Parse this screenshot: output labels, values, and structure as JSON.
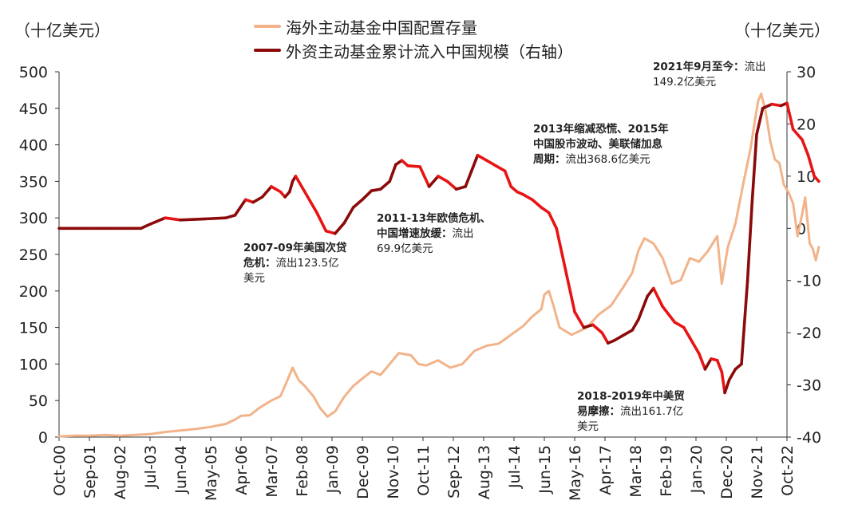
{
  "chart_data": {
    "type": "line",
    "left_unit": "（十亿美元）",
    "right_unit": "（十亿美元）",
    "legend": [
      {
        "name": "海外主动基金中国配置存量",
        "color": "#F2B38A"
      },
      {
        "name": "外资主动基金累计流入中国规模（右轴）",
        "color": "#8B0A0A"
      }
    ],
    "x_labels": [
      "Oct-00",
      "Sep-01",
      "Aug-02",
      "Jul-03",
      "Jun-04",
      "May-05",
      "Apr-06",
      "Mar-07",
      "Feb-08",
      "Jan-09",
      "Dec-09",
      "Nov-10",
      "Oct-11",
      "Sep-12",
      "Aug-13",
      "Jul-14",
      "Jun-15",
      "May-16",
      "Apr-17",
      "Mar-18",
      "Feb-19",
      "Jan-20",
      "Dec-20",
      "Nov-21",
      "Oct-22"
    ],
    "y_left": {
      "min": 0,
      "max": 500,
      "ticks": [
        0,
        50,
        100,
        150,
        200,
        250,
        300,
        350,
        400,
        450,
        500
      ]
    },
    "y_right": {
      "min": -40,
      "max": 30,
      "ticks": [
        -40,
        -30,
        -20,
        -10,
        0,
        10,
        20,
        30
      ]
    },
    "series": [
      {
        "name": "海外主动基金中国配置存量",
        "axis": "left",
        "color": "#F2B38A",
        "points": [
          [
            0,
            1
          ],
          [
            0.5,
            2
          ],
          [
            1,
            2
          ],
          [
            1.5,
            3
          ],
          [
            2,
            2
          ],
          [
            2.5,
            3
          ],
          [
            3,
            4
          ],
          [
            3.5,
            7
          ],
          [
            4,
            9
          ],
          [
            4.5,
            11
          ],
          [
            5,
            14
          ],
          [
            5.5,
            18
          ],
          [
            5.8,
            24
          ],
          [
            6,
            29
          ],
          [
            6.3,
            30
          ],
          [
            6.6,
            40
          ],
          [
            7,
            50
          ],
          [
            7.3,
            56
          ],
          [
            7.5,
            75
          ],
          [
            7.7,
            95
          ],
          [
            7.9,
            78
          ],
          [
            8.1,
            70
          ],
          [
            8.4,
            55
          ],
          [
            8.6,
            40
          ],
          [
            8.85,
            28
          ],
          [
            9.1,
            35
          ],
          [
            9.4,
            55
          ],
          [
            9.7,
            70
          ],
          [
            10,
            80
          ],
          [
            10.3,
            90
          ],
          [
            10.6,
            85
          ],
          [
            10.9,
            100
          ],
          [
            11.2,
            115
          ],
          [
            11.6,
            112
          ],
          [
            11.85,
            100
          ],
          [
            12.1,
            98
          ],
          [
            12.5,
            105
          ],
          [
            12.9,
            95
          ],
          [
            13.3,
            100
          ],
          [
            13.7,
            118
          ],
          [
            14.1,
            125
          ],
          [
            14.5,
            128
          ],
          [
            14.9,
            140
          ],
          [
            15.3,
            152
          ],
          [
            15.6,
            165
          ],
          [
            15.9,
            175
          ],
          [
            16,
            195
          ],
          [
            16.15,
            200
          ],
          [
            16.3,
            180
          ],
          [
            16.5,
            150
          ],
          [
            16.9,
            140
          ],
          [
            17.4,
            150
          ],
          [
            17.8,
            168
          ],
          [
            18.2,
            180
          ],
          [
            18.6,
            205
          ],
          [
            18.9,
            225
          ],
          [
            19.1,
            255
          ],
          [
            19.3,
            272
          ],
          [
            19.6,
            265
          ],
          [
            19.9,
            245
          ],
          [
            20.2,
            210
          ],
          [
            20.5,
            215
          ],
          [
            20.8,
            245
          ],
          [
            21.1,
            240
          ],
          [
            21.4,
            255
          ],
          [
            21.7,
            275
          ],
          [
            21.85,
            210
          ],
          [
            22.05,
            260
          ],
          [
            22.3,
            292
          ],
          [
            22.55,
            345
          ],
          [
            22.8,
            395
          ],
          [
            22.95,
            435
          ],
          [
            23.05,
            460
          ],
          [
            23.15,
            470
          ],
          [
            23.3,
            445
          ],
          [
            23.45,
            405
          ],
          [
            23.6,
            380
          ],
          [
            23.75,
            375
          ],
          [
            23.9,
            345
          ],
          [
            24.05,
            335
          ],
          [
            24.2,
            320
          ],
          [
            24.35,
            275
          ],
          [
            24.5,
            305
          ],
          [
            24.6,
            328
          ],
          [
            24.75,
            265
          ],
          [
            24.85,
            258
          ],
          [
            24.95,
            242
          ],
          [
            25.05,
            260
          ]
        ]
      },
      {
        "name": "外资主动基金累计流入中国规模（右轴）",
        "axis": "right",
        "color": "#8B0A0A",
        "points": [
          [
            0,
            0
          ],
          [
            1,
            0
          ],
          [
            2,
            0
          ],
          [
            2.7,
            0
          ],
          [
            3,
            0.8
          ],
          [
            3.5,
            2
          ],
          [
            4,
            1.6
          ],
          [
            4.8,
            1.8
          ],
          [
            5.5,
            2
          ],
          [
            5.8,
            2.5
          ],
          [
            6.15,
            5.5
          ],
          [
            6.4,
            5
          ],
          [
            6.7,
            6
          ],
          [
            7,
            8
          ],
          [
            7.3,
            7
          ],
          [
            7.45,
            6
          ],
          [
            7.6,
            7
          ],
          [
            7.7,
            9
          ],
          [
            7.8,
            10
          ],
          [
            8.2,
            6
          ],
          [
            8.5,
            3
          ],
          [
            8.8,
            -0.5
          ],
          [
            9.1,
            -1
          ],
          [
            9.4,
            1
          ],
          [
            9.7,
            4
          ],
          [
            10,
            5.5
          ],
          [
            10.3,
            7.2
          ],
          [
            10.6,
            7.5
          ],
          [
            10.9,
            9
          ],
          [
            11.1,
            12.2
          ],
          [
            11.3,
            13
          ],
          [
            11.5,
            12
          ],
          [
            11.9,
            11.8
          ],
          [
            12.2,
            8
          ],
          [
            12.5,
            10
          ],
          [
            12.8,
            9
          ],
          [
            13.1,
            7.5
          ],
          [
            13.4,
            8
          ],
          [
            13.6,
            11
          ],
          [
            13.8,
            14
          ],
          [
            14.1,
            13
          ],
          [
            14.4,
            12
          ],
          [
            14.7,
            11
          ],
          [
            14.9,
            8
          ],
          [
            15.1,
            7
          ],
          [
            15.3,
            6.5
          ],
          [
            15.6,
            5.5
          ],
          [
            15.9,
            4
          ],
          [
            16.15,
            3
          ],
          [
            16.4,
            0
          ],
          [
            16.7,
            -8
          ],
          [
            17.0,
            -16
          ],
          [
            17.3,
            -19
          ],
          [
            17.6,
            -18.5
          ],
          [
            17.9,
            -20
          ],
          [
            18.1,
            -22
          ],
          [
            18.3,
            -21.5
          ],
          [
            18.6,
            -20.5
          ],
          [
            18.9,
            -19.5
          ],
          [
            19.1,
            -17.5
          ],
          [
            19.4,
            -13
          ],
          [
            19.6,
            -11.5
          ],
          [
            19.9,
            -15
          ],
          [
            20.3,
            -18
          ],
          [
            20.6,
            -19
          ],
          [
            20.8,
            -21
          ],
          [
            21.1,
            -24
          ],
          [
            21.3,
            -27
          ],
          [
            21.5,
            -25
          ],
          [
            21.7,
            -25.3
          ],
          [
            21.85,
            -27.5
          ],
          [
            21.95,
            -31.5
          ],
          [
            22.1,
            -29
          ],
          [
            22.3,
            -27
          ],
          [
            22.5,
            -26
          ],
          [
            22.7,
            -10
          ],
          [
            22.85,
            5
          ],
          [
            23,
            18
          ],
          [
            23.2,
            23
          ],
          [
            23.5,
            23.8
          ],
          [
            23.8,
            23.5
          ],
          [
            24.0,
            24
          ],
          [
            24.2,
            19
          ],
          [
            24.5,
            17
          ],
          [
            24.7,
            14
          ],
          [
            24.9,
            10
          ],
          [
            25.05,
            9
          ]
        ]
      }
    ],
    "annotations": [
      {
        "bold": "2007-09年美国次贷危机：",
        "text": "流出123.5亿美元"
      },
      {
        "bold": "2011-13年欧债危机、中国增速放缓：",
        "text": "流出69.9亿美元"
      },
      {
        "bold": "2013年缩减恐慌、2015年中国股市波动、美联储加息周期：",
        "text": "流出368.6亿美元"
      },
      {
        "bold": "2018-2019年中美贸易摩擦：",
        "text": "流出161.7亿美元"
      },
      {
        "bold": "2021年9月至今：",
        "text": "流出149.2亿美元"
      }
    ]
  }
}
